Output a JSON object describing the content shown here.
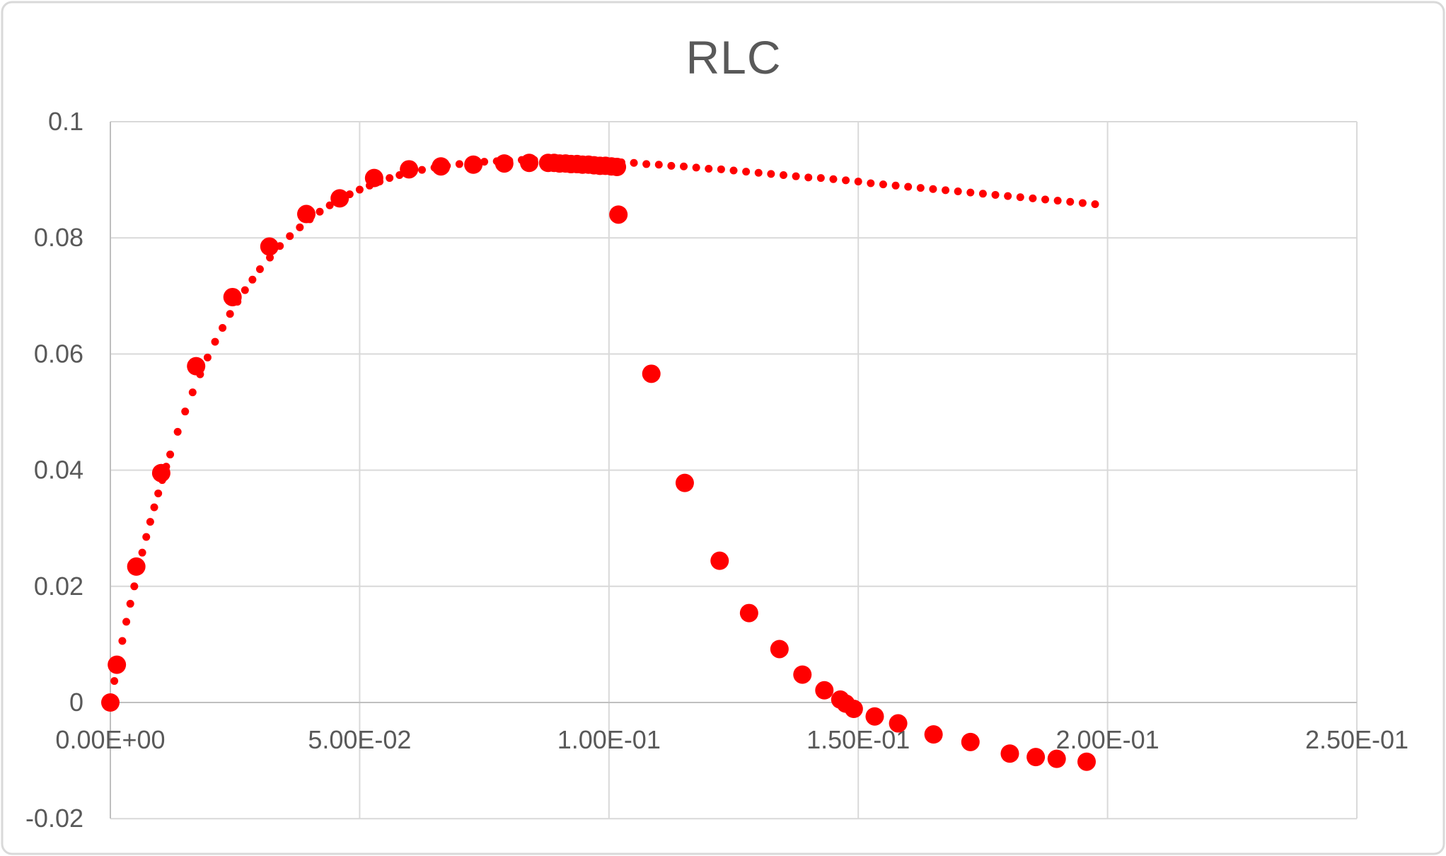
{
  "title": "RLC",
  "colors": {
    "series": "#FF0000",
    "gridline": "#D9D9D9",
    "axis_line": "#BFBFBF",
    "label": "#595959",
    "chart_border": "#D9D9D9",
    "background": "#FFFFFF"
  },
  "axes": {
    "x": {
      "min": 0,
      "max": 0.25,
      "tick_step": 0.05,
      "tick_values": [
        0,
        0.05,
        0.1,
        0.15,
        0.2,
        0.25
      ],
      "tick_labels": [
        "0.00E+00",
        "5.00E-02",
        "1.00E-01",
        "1.50E-01",
        "2.00E-01",
        "2.50E-01"
      ]
    },
    "y": {
      "min": -0.02,
      "max": 0.1,
      "tick_step": 0.02,
      "tick_values": [
        -0.02,
        0,
        0.02,
        0.04,
        0.06,
        0.08,
        0.1
      ],
      "tick_labels": [
        "-0.02",
        "0",
        "0.02",
        "0.04",
        "0.06",
        "0.08",
        "0.1"
      ]
    }
  },
  "chart_data": {
    "type": "scatter",
    "title": "RLC",
    "xlabel": "",
    "ylabel": "",
    "x_range": [
      0,
      0.25
    ],
    "y_range": [
      -0.02,
      0.1
    ],
    "grid": true,
    "legend": false,
    "series": [
      {
        "name": "model-small-dots",
        "marker_radius_px": 5.5,
        "points": [
          [
            0,
            0
          ],
          [
            0.0008,
            0.0037
          ],
          [
            0.0016,
            0.0072
          ],
          [
            0.0024,
            0.0106
          ],
          [
            0.0032,
            0.0139
          ],
          [
            0.004,
            0.017
          ],
          [
            0.0048,
            0.02
          ],
          [
            0.0056,
            0.023
          ],
          [
            0.0064,
            0.0258
          ],
          [
            0.0072,
            0.0285
          ],
          [
            0.008,
            0.0311
          ],
          [
            0.0088,
            0.0336
          ],
          [
            0.0096,
            0.036
          ],
          [
            0.0104,
            0.0383
          ],
          [
            0.0112,
            0.0406
          ],
          [
            0.012,
            0.0427
          ],
          [
            0.0135,
            0.0466
          ],
          [
            0.015,
            0.0501
          ],
          [
            0.0165,
            0.0534
          ],
          [
            0.018,
            0.0565
          ],
          [
            0.0195,
            0.0594
          ],
          [
            0.021,
            0.0621
          ],
          [
            0.0225,
            0.0645
          ],
          [
            0.024,
            0.0669
          ],
          [
            0.0255,
            0.069
          ],
          [
            0.027,
            0.071
          ],
          [
            0.0285,
            0.0728
          ],
          [
            0.03,
            0.0746
          ],
          [
            0.032,
            0.0766
          ],
          [
            0.034,
            0.0786
          ],
          [
            0.036,
            0.0803
          ],
          [
            0.038,
            0.0818
          ],
          [
            0.04,
            0.0832
          ],
          [
            0.042,
            0.0845
          ],
          [
            0.044,
            0.0856
          ],
          [
            0.046,
            0.0866
          ],
          [
            0.048,
            0.0875
          ],
          [
            0.05,
            0.0883
          ],
          [
            0.052,
            0.089
          ],
          [
            0.054,
            0.0897
          ],
          [
            0.056,
            0.0903
          ],
          [
            0.058,
            0.0908
          ],
          [
            0.06,
            0.0912
          ],
          [
            0.0625,
            0.0917
          ],
          [
            0.065,
            0.0921
          ],
          [
            0.0675,
            0.0924
          ],
          [
            0.07,
            0.0927
          ],
          [
            0.0725,
            0.0929
          ],
          [
            0.075,
            0.0931
          ],
          [
            0.0775,
            0.0932
          ],
          [
            0.08,
            0.0933
          ],
          [
            0.0825,
            0.0934
          ],
          [
            0.085,
            0.0934
          ],
          [
            0.0875,
            0.0934
          ],
          [
            0.09,
            0.0934
          ],
          [
            0.0925,
            0.0933
          ],
          [
            0.095,
            0.0933
          ],
          [
            0.0975,
            0.0932
          ],
          [
            0.1,
            0.0931
          ],
          [
            0.1025,
            0.093
          ],
          [
            0.105,
            0.0929
          ],
          [
            0.1075,
            0.0927
          ],
          [
            0.11,
            0.0926
          ],
          [
            0.1125,
            0.0924
          ],
          [
            0.115,
            0.0923
          ],
          [
            0.1175,
            0.0921
          ],
          [
            0.12,
            0.0919
          ],
          [
            0.1225,
            0.0918
          ],
          [
            0.125,
            0.0916
          ],
          [
            0.1275,
            0.0914
          ],
          [
            0.13,
            0.0912
          ],
          [
            0.1325,
            0.091
          ],
          [
            0.135,
            0.0908
          ],
          [
            0.1375,
            0.0906
          ],
          [
            0.14,
            0.0904
          ],
          [
            0.1425,
            0.0903
          ],
          [
            0.145,
            0.0901
          ],
          [
            0.1475,
            0.0899
          ],
          [
            0.15,
            0.0897
          ],
          [
            0.1525,
            0.0894
          ],
          [
            0.155,
            0.0892
          ],
          [
            0.1575,
            0.089
          ],
          [
            0.16,
            0.0888
          ],
          [
            0.1625,
            0.0886
          ],
          [
            0.165,
            0.0884
          ],
          [
            0.1675,
            0.0882
          ],
          [
            0.17,
            0.088
          ],
          [
            0.1725,
            0.0878
          ],
          [
            0.175,
            0.0876
          ],
          [
            0.1775,
            0.0874
          ],
          [
            0.18,
            0.0872
          ],
          [
            0.1825,
            0.087
          ],
          [
            0.185,
            0.0868
          ],
          [
            0.1875,
            0.0866
          ],
          [
            0.19,
            0.0864
          ],
          [
            0.1925,
            0.0862
          ],
          [
            0.195,
            0.086
          ],
          [
            0.1975,
            0.0858
          ]
        ]
      },
      {
        "name": "data-large-dots",
        "marker_radius_px": 13,
        "points": [
          [
            0,
            0
          ],
          [
            0.0013,
            0.0065
          ],
          [
            0.0052,
            0.0234
          ],
          [
            0.0102,
            0.0395
          ],
          [
            0.0172,
            0.0579
          ],
          [
            0.0245,
            0.0698
          ],
          [
            0.0319,
            0.0785
          ],
          [
            0.0393,
            0.0841
          ],
          [
            0.046,
            0.0868
          ],
          [
            0.0529,
            0.0903
          ],
          [
            0.0599,
            0.0918
          ],
          [
            0.0663,
            0.0923
          ],
          [
            0.0728,
            0.0926
          ],
          [
            0.079,
            0.0928
          ],
          [
            0.084,
            0.0929
          ],
          [
            0.0878,
            0.0929
          ],
          [
            0.089,
            0.0929
          ],
          [
            0.0901,
            0.0928
          ],
          [
            0.0913,
            0.0928
          ],
          [
            0.0924,
            0.0927
          ],
          [
            0.0936,
            0.0927
          ],
          [
            0.0947,
            0.0926
          ],
          [
            0.0959,
            0.0926
          ],
          [
            0.097,
            0.0925
          ],
          [
            0.0982,
            0.0924
          ],
          [
            0.0993,
            0.0924
          ],
          [
            0.1005,
            0.0923
          ],
          [
            0.1016,
            0.0922
          ],
          [
            0.1019,
            0.084
          ],
          [
            0.1085,
            0.0566
          ],
          [
            0.1152,
            0.0378
          ],
          [
            0.1222,
            0.0244
          ],
          [
            0.1281,
            0.0154
          ],
          [
            0.1342,
            0.0092
          ],
          [
            0.1388,
            0.0048
          ],
          [
            0.1432,
            0.0021
          ],
          [
            0.1464,
            0.0005
          ],
          [
            0.1475,
            -0.0002
          ],
          [
            0.1491,
            -0.0011
          ],
          [
            0.1533,
            -0.0024
          ],
          [
            0.158,
            -0.0036
          ],
          [
            0.1651,
            -0.0055
          ],
          [
            0.1725,
            -0.0068
          ],
          [
            0.1804,
            -0.0088
          ],
          [
            0.1856,
            -0.0094
          ],
          [
            0.1898,
            -0.0097
          ],
          [
            0.1958,
            -0.0102
          ]
        ]
      }
    ]
  }
}
